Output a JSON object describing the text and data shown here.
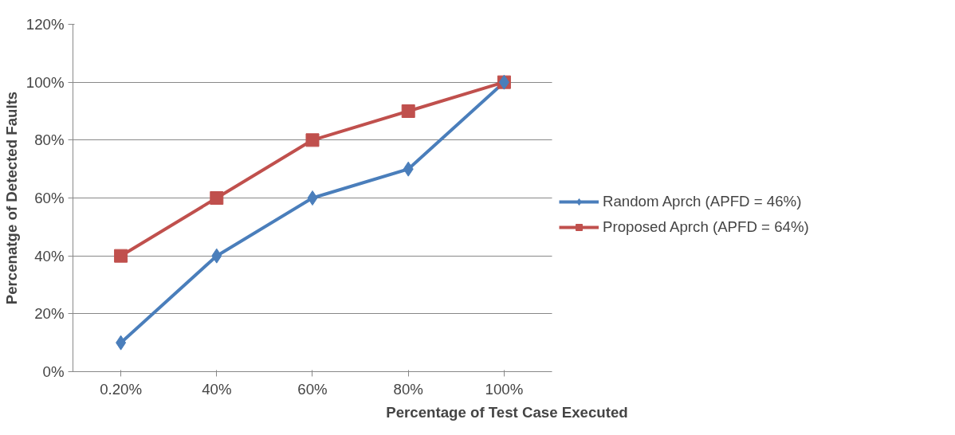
{
  "chart_data": {
    "type": "line",
    "xlabel": "Percentage of Test Case Executed",
    "ylabel": "Percenatge of Detected Faults",
    "categories": [
      "0.20%",
      "40%",
      "60%",
      "80%",
      "100%"
    ],
    "series": [
      {
        "name": "Random Aprch (APFD = 46%)",
        "color": "#4a7ebb",
        "marker": "diamond",
        "values": [
          10,
          40,
          60,
          70,
          100
        ]
      },
      {
        "name": "Proposed Aprch (APFD = 64%)",
        "color": "#c0504d",
        "marker": "square",
        "values": [
          40,
          60,
          80,
          90,
          100
        ]
      }
    ],
    "ylim": [
      0,
      120
    ],
    "yticks": [
      {
        "value": 0,
        "label": "0%"
      },
      {
        "value": 20,
        "label": "20%"
      },
      {
        "value": 40,
        "label": "40%"
      },
      {
        "value": 60,
        "label": "60%"
      },
      {
        "value": 80,
        "label": "80%"
      },
      {
        "value": 100,
        "label": "100%"
      },
      {
        "value": 120,
        "label": "120%"
      }
    ],
    "grid": "y",
    "legend": "right",
    "line_style": "solid"
  }
}
